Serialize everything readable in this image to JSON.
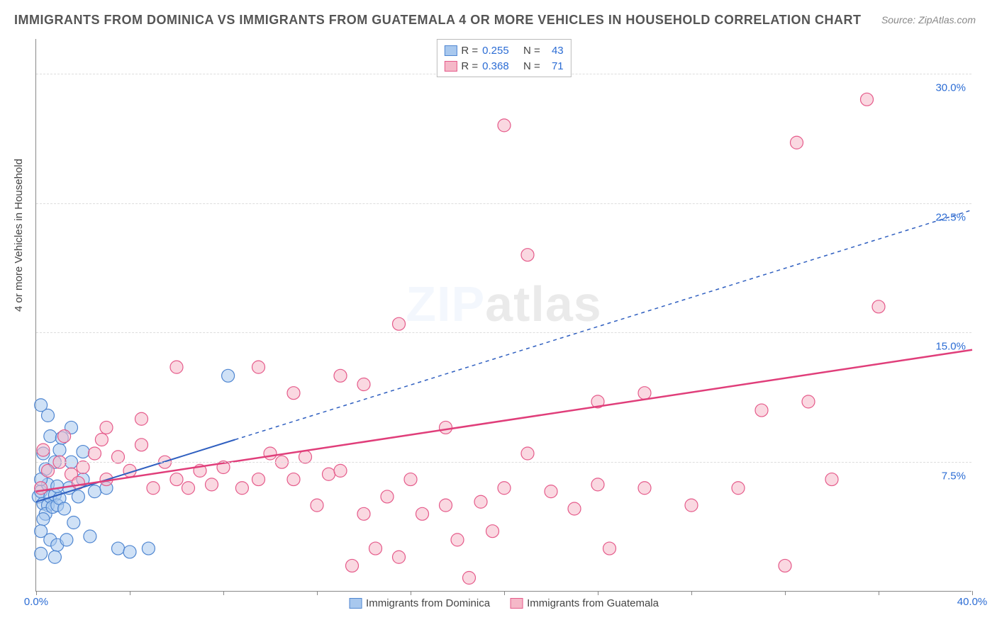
{
  "title": "IMMIGRANTS FROM DOMINICA VS IMMIGRANTS FROM GUATEMALA 4 OR MORE VEHICLES IN HOUSEHOLD CORRELATION CHART",
  "source": "Source: ZipAtlas.com",
  "ylabel": "4 or more Vehicles in Household",
  "watermark_a": "ZIP",
  "watermark_b": "atlas",
  "chart": {
    "type": "scatter",
    "xlim": [
      0,
      40
    ],
    "ylim": [
      0,
      32
    ],
    "x_ticks": [
      0,
      4,
      8,
      12,
      16,
      20,
      24,
      28,
      32,
      36,
      40
    ],
    "x_tick_labels": {
      "0": "0.0%",
      "40": "40.0%"
    },
    "y_gridlines": [
      7.5,
      15,
      22.5,
      30
    ],
    "y_tick_labels": {
      "7.5": "7.5%",
      "15": "15.0%",
      "22.5": "22.5%",
      "30": "30.0%"
    },
    "background_color": "#ffffff",
    "grid_color": "#dddddd",
    "axis_color": "#888888",
    "label_color": "#2b6cd4",
    "marker_radius": 9,
    "marker_stroke_width": 1.2,
    "series": [
      {
        "name": "Immigrants from Dominica",
        "key": "dominica",
        "fill": "#a8c8ee",
        "stroke": "#4f86d1",
        "fill_opacity": 0.55,
        "R": "0.255",
        "N": "43",
        "trend": {
          "x1": 0,
          "y1": 5.2,
          "x2": 8.5,
          "y2": 8.8,
          "extend_x": 40,
          "extend_y": 22.1,
          "color": "#2f5fc0",
          "dash": "5,5",
          "width": 2
        },
        "points": [
          [
            0.1,
            5.5
          ],
          [
            0.3,
            5.1
          ],
          [
            0.2,
            5.8
          ],
          [
            0.5,
            5.0
          ],
          [
            0.4,
            4.5
          ],
          [
            0.6,
            5.5
          ],
          [
            0.7,
            4.9
          ],
          [
            0.3,
            4.2
          ],
          [
            0.8,
            5.6
          ],
          [
            0.5,
            6.2
          ],
          [
            0.9,
            5.0
          ],
          [
            1.0,
            5.4
          ],
          [
            0.2,
            3.5
          ],
          [
            0.6,
            3.0
          ],
          [
            1.2,
            4.8
          ],
          [
            0.4,
            7.1
          ],
          [
            0.8,
            7.5
          ],
          [
            0.3,
            8.0
          ],
          [
            1.0,
            8.2
          ],
          [
            0.6,
            9.0
          ],
          [
            1.4,
            6.0
          ],
          [
            1.8,
            5.5
          ],
          [
            2.0,
            6.5
          ],
          [
            2.5,
            5.8
          ],
          [
            3.0,
            6.0
          ],
          [
            1.6,
            4.0
          ],
          [
            2.3,
            3.2
          ],
          [
            0.9,
            2.7
          ],
          [
            0.2,
            2.2
          ],
          [
            0.8,
            2.0
          ],
          [
            1.3,
            3.0
          ],
          [
            0.5,
            10.2
          ],
          [
            0.2,
            10.8
          ],
          [
            1.1,
            8.9
          ],
          [
            3.5,
            2.5
          ],
          [
            4.0,
            2.3
          ],
          [
            4.8,
            2.5
          ],
          [
            1.5,
            7.5
          ],
          [
            2.0,
            8.1
          ],
          [
            0.2,
            6.5
          ],
          [
            0.9,
            6.1
          ],
          [
            8.2,
            12.5
          ],
          [
            1.5,
            9.5
          ]
        ]
      },
      {
        "name": "Immigrants from Guatemala",
        "key": "guatemala",
        "fill": "#f5b8c8",
        "stroke": "#e55a8a",
        "fill_opacity": 0.55,
        "R": "0.368",
        "N": "71",
        "trend": {
          "x1": 0,
          "y1": 5.8,
          "x2": 40,
          "y2": 14.0,
          "color": "#e03e7a",
          "width": 2.5
        },
        "points": [
          [
            0.5,
            7.0
          ],
          [
            1.0,
            7.5
          ],
          [
            1.5,
            6.8
          ],
          [
            2.0,
            7.2
          ],
          [
            2.5,
            8.0
          ],
          [
            3.0,
            6.5
          ],
          [
            3.5,
            7.8
          ],
          [
            4.0,
            7.0
          ],
          [
            4.5,
            8.5
          ],
          [
            5.0,
            6.0
          ],
          [
            5.5,
            7.5
          ],
          [
            6.0,
            6.5
          ],
          [
            6.5,
            6.0
          ],
          [
            7.0,
            7.0
          ],
          [
            7.5,
            6.2
          ],
          [
            8.0,
            7.2
          ],
          [
            8.8,
            6.0
          ],
          [
            9.5,
            6.5
          ],
          [
            10.0,
            8.0
          ],
          [
            10.5,
            7.5
          ],
          [
            11.0,
            6.5
          ],
          [
            11.5,
            7.8
          ],
          [
            12.0,
            5.0
          ],
          [
            12.5,
            6.8
          ],
          [
            13.0,
            7.0
          ],
          [
            14.0,
            4.5
          ],
          [
            14.5,
            2.5
          ],
          [
            13.5,
            1.5
          ],
          [
            15.0,
            5.5
          ],
          [
            15.5,
            2.0
          ],
          [
            16.0,
            6.5
          ],
          [
            16.5,
            4.5
          ],
          [
            17.5,
            5.0
          ],
          [
            18.0,
            3.0
          ],
          [
            18.5,
            0.8
          ],
          [
            19.0,
            5.2
          ],
          [
            19.5,
            3.5
          ],
          [
            20.0,
            6.0
          ],
          [
            21.0,
            8.0
          ],
          [
            22.0,
            5.8
          ],
          [
            23.0,
            4.8
          ],
          [
            24.0,
            6.2
          ],
          [
            24.5,
            2.5
          ],
          [
            26.0,
            6.0
          ],
          [
            28.0,
            5.0
          ],
          [
            30.0,
            6.0
          ],
          [
            32.0,
            1.5
          ],
          [
            34.0,
            6.5
          ],
          [
            3.0,
            9.5
          ],
          [
            4.5,
            10.0
          ],
          [
            6.0,
            13.0
          ],
          [
            9.5,
            13.0
          ],
          [
            11.0,
            11.5
          ],
          [
            13.0,
            12.5
          ],
          [
            14.0,
            12.0
          ],
          [
            15.5,
            15.5
          ],
          [
            17.5,
            9.5
          ],
          [
            21.0,
            19.5
          ],
          [
            24.0,
            11.0
          ],
          [
            26.0,
            11.5
          ],
          [
            31.0,
            10.5
          ],
          [
            33.0,
            11.0
          ],
          [
            36.0,
            16.5
          ],
          [
            20.0,
            27.0
          ],
          [
            32.5,
            26.0
          ],
          [
            35.5,
            28.5
          ],
          [
            0.3,
            8.2
          ],
          [
            1.2,
            9.0
          ],
          [
            2.8,
            8.8
          ],
          [
            0.2,
            6.0
          ],
          [
            1.8,
            6.3
          ]
        ]
      }
    ]
  },
  "legend_top_labels": {
    "R": "R =",
    "N": "N ="
  },
  "legend_bottom": [
    "Immigrants from Dominica",
    "Immigrants from Guatemala"
  ]
}
